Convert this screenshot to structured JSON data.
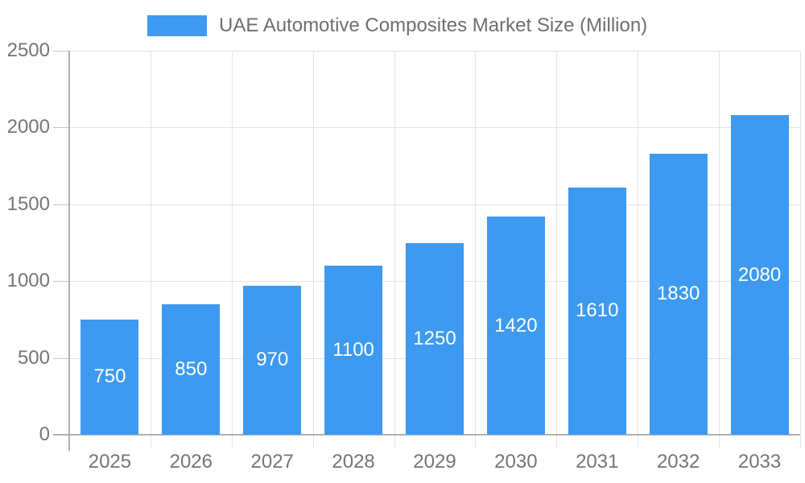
{
  "legend": {
    "items": [
      {
        "label": "UAE Automotive Composites Market Size (Million)",
        "color": "#3d9af0"
      }
    ]
  },
  "chart_data": {
    "type": "bar",
    "title": "UAE Automotive Composites Market Size (Million)",
    "categories": [
      "2025",
      "2026",
      "2027",
      "2028",
      "2029",
      "2030",
      "2031",
      "2032",
      "2033"
    ],
    "series": [
      {
        "name": "UAE Automotive Composites Market Size (Million)",
        "values": [
          750,
          850,
          970,
          1100,
          1250,
          1420,
          1610,
          1830,
          2080
        ]
      }
    ],
    "value_labels": [
      "750",
      "850",
      "970",
      "1100",
      "1250",
      "1420",
      "1610",
      "1830",
      "2080"
    ],
    "xlabel": "",
    "ylabel": "",
    "ylim": [
      0,
      2500
    ],
    "yticks": [
      0,
      500,
      1000,
      1500,
      2000,
      2500
    ],
    "grid": true,
    "legend_position": "top-center"
  },
  "colors": {
    "bar": "#3d9af0",
    "bar_value_text": "#ffffff",
    "grid": "#e3e3e3",
    "axis": "#b0b0b0",
    "tick": "#c6c6c6",
    "axis_text": "#757575",
    "legend_text": "#6e6e6e",
    "background": "#ffffff"
  }
}
